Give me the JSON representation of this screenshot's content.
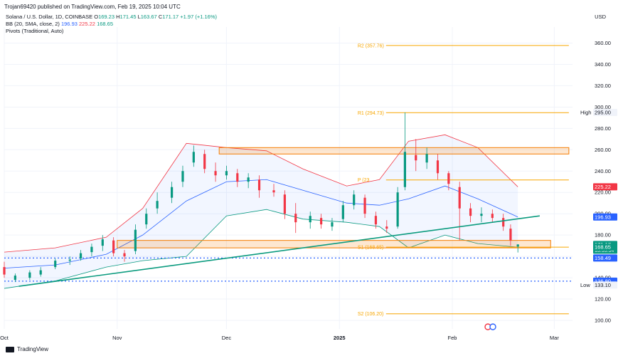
{
  "header": {
    "published_line": "Trojan69420 published on TradingView.com, Feb 19, 2025 10:04 UTC",
    "currency": "USD"
  },
  "legend": {
    "symbol": "Solana / U.S. Dollar, 1D, COINBASE",
    "open_label": "O",
    "open": "169.23",
    "high_label": "H",
    "high": "171.45",
    "low_label": "L",
    "low": "163.67",
    "close_label": "C",
    "close": "171.17",
    "change": "+1.97 (+1.16%)",
    "bb_label": "BB (20, SMA, close, 2)",
    "bb_basis": "196.93",
    "bb_upper": "225.22",
    "bb_lower": "168.65",
    "pivots_label": "Pivots (Traditional, Auto)"
  },
  "footer": {
    "brand": "TradingView"
  },
  "colors": {
    "up": "#089981",
    "down": "#f23645",
    "bb_basis": "#2962ff",
    "bb_upper": "#f23645",
    "bb_lower": "#089981",
    "pivot": "#f7a600",
    "zone": "#f57c00",
    "trendline": "#0b9b7f"
  },
  "chart_data": {
    "type": "candlestick",
    "y_axis": {
      "min": 92,
      "max": 375,
      "scale": "linear",
      "ticks": [
        100,
        120,
        140,
        160,
        180,
        200,
        220,
        240,
        260,
        280,
        300,
        320,
        340,
        360
      ]
    },
    "x_axis": {
      "start": "2024-10-01",
      "end": "2025-03-06",
      "labels": [
        {
          "date": "2024-10-01",
          "text": "Oct"
        },
        {
          "date": "2024-11-01",
          "text": "Nov"
        },
        {
          "date": "2024-12-01",
          "text": "Dec"
        },
        {
          "date": "2025-01-01",
          "text": "2025"
        },
        {
          "date": "2025-02-01",
          "text": "Feb"
        },
        {
          "date": "2025-03-01",
          "text": "Mar"
        }
      ]
    },
    "grid": true,
    "pivots": [
      {
        "label": "R2 (357.76)",
        "value": 357.76,
        "from": "2025-01-06",
        "to": "2025-03-05"
      },
      {
        "label": "R1 (294.73)",
        "value": 294.73,
        "from": "2025-01-06",
        "to": "2025-03-05"
      },
      {
        "label": "P (23",
        "value": 231.7,
        "from": "2025-01-06",
        "to": "2025-03-05"
      },
      {
        "label": "S1 (168.65)",
        "value": 168.65,
        "from": "2025-01-06",
        "to": "2025-03-05"
      },
      {
        "label": "S2 (106.20)",
        "value": 106.2,
        "from": "2025-01-06",
        "to": "2025-03-05"
      }
    ],
    "zones": [
      {
        "from": "2024-11-29",
        "to": "2025-03-05",
        "low": 256,
        "high": 262
      },
      {
        "from": "2024-11-01",
        "to": "2025-02-28",
        "low": 168,
        "high": 175
      }
    ],
    "trendline": {
      "from": {
        "date": "2024-10-05",
        "value": 132
      },
      "to": {
        "date": "2025-02-25",
        "value": 198
      }
    },
    "levels": [
      {
        "value": 158.49,
        "label": "158.49",
        "style": "dotted",
        "color": "#2962ff"
      },
      {
        "value": 136.8,
        "label": "136.80",
        "style": "dotted",
        "color": "#2962ff"
      }
    ],
    "price_tags": [
      {
        "value": 295.0,
        "text": "295.00",
        "caption": "High",
        "bg": "#f0f3fa",
        "fg": "#131722"
      },
      {
        "value": 225.22,
        "text": "225.22",
        "bg": "#f23645",
        "fg": "#ffffff"
      },
      {
        "value": 196.93,
        "text": "196.93",
        "bg": "#2962ff",
        "fg": "#ffffff"
      },
      {
        "value": 171.17,
        "text": "171.17",
        "sub": "13:55:54",
        "bg": "#089981",
        "fg": "#ffffff"
      },
      {
        "value": 168.65,
        "text": "168.65",
        "bg": "#089981",
        "fg": "#ffffff"
      },
      {
        "value": 158.49,
        "text": "158.49",
        "bg": "#2962ff",
        "fg": "#ffffff"
      },
      {
        "value": 136.8,
        "text": "136.80",
        "bg": "#2962ff",
        "fg": "#ffffff"
      },
      {
        "value": 133.1,
        "text": "133.10",
        "caption": "Low",
        "bg": "#f0f3fa",
        "fg": "#131722"
      }
    ],
    "ohlc": [
      [
        "2024-10-01",
        150,
        155,
        140,
        143
      ],
      [
        "2024-10-04",
        138,
        144,
        136,
        142
      ],
      [
        "2024-10-08",
        140,
        147,
        138,
        145
      ],
      [
        "2024-10-11",
        143,
        150,
        141,
        147
      ],
      [
        "2024-10-15",
        150,
        158,
        148,
        156
      ],
      [
        "2024-10-19",
        156,
        160,
        152,
        157
      ],
      [
        "2024-10-22",
        158,
        166,
        156,
        163
      ],
      [
        "2024-10-25",
        164,
        172,
        160,
        169
      ],
      [
        "2024-10-28",
        170,
        180,
        165,
        176
      ],
      [
        "2024-10-31",
        175,
        178,
        160,
        163
      ],
      [
        "2024-11-03",
        163,
        166,
        155,
        160
      ],
      [
        "2024-11-06",
        165,
        190,
        162,
        185
      ],
      [
        "2024-11-09",
        190,
        205,
        186,
        200
      ],
      [
        "2024-11-12",
        205,
        220,
        200,
        212
      ],
      [
        "2024-11-16",
        215,
        230,
        210,
        225
      ],
      [
        "2024-11-19",
        230,
        245,
        225,
        240
      ],
      [
        "2024-11-22",
        248,
        264,
        244,
        258
      ],
      [
        "2024-11-25",
        256,
        260,
        238,
        242
      ],
      [
        "2024-11-28",
        240,
        248,
        230,
        236
      ],
      [
        "2024-12-01",
        236,
        245,
        232,
        240
      ],
      [
        "2024-12-04",
        238,
        242,
        225,
        230
      ],
      [
        "2024-12-07",
        230,
        238,
        224,
        234
      ],
      [
        "2024-12-10",
        232,
        236,
        215,
        222
      ],
      [
        "2024-12-14",
        222,
        228,
        216,
        220
      ],
      [
        "2024-12-17",
        218,
        222,
        195,
        200
      ],
      [
        "2024-12-20",
        200,
        210,
        182,
        192
      ],
      [
        "2024-12-24",
        192,
        202,
        186,
        198
      ],
      [
        "2024-12-27",
        196,
        200,
        186,
        190
      ],
      [
        "2024-12-30",
        188,
        196,
        184,
        192
      ],
      [
        "2025-01-02",
        195,
        212,
        192,
        208
      ],
      [
        "2025-01-05",
        208,
        222,
        204,
        218
      ],
      [
        "2025-01-08",
        215,
        218,
        196,
        200
      ],
      [
        "2025-01-11",
        198,
        202,
        186,
        190
      ],
      [
        "2025-01-14",
        188,
        194,
        182,
        186
      ],
      [
        "2025-01-17",
        188,
        225,
        186,
        220
      ],
      [
        "2025-01-19",
        225,
        295,
        222,
        258
      ],
      [
        "2025-01-22",
        255,
        270,
        240,
        250
      ],
      [
        "2025-01-25",
        248,
        262,
        242,
        256
      ],
      [
        "2025-01-28",
        250,
        256,
        232,
        238
      ],
      [
        "2025-01-31",
        238,
        240,
        222,
        228
      ],
      [
        "2025-02-03",
        225,
        230,
        175,
        205
      ],
      [
        "2025-02-06",
        205,
        210,
        192,
        198
      ],
      [
        "2025-02-09",
        198,
        206,
        192,
        200
      ],
      [
        "2025-02-12",
        200,
        204,
        192,
        196
      ],
      [
        "2025-02-15",
        196,
        200,
        184,
        188
      ],
      [
        "2025-02-17",
        186,
        190,
        170,
        175
      ],
      [
        "2025-02-19",
        169.23,
        171.45,
        163.67,
        171.17
      ]
    ],
    "bollinger": {
      "dates": [
        "2024-10-01",
        "2024-10-15",
        "2024-10-29",
        "2024-11-08",
        "2024-11-20",
        "2024-12-01",
        "2024-12-12",
        "2024-12-22",
        "2025-01-03",
        "2025-01-12",
        "2025-01-20",
        "2025-01-30",
        "2025-02-08",
        "2025-02-19"
      ],
      "upper": [
        164,
        168,
        178,
        205,
        266,
        262,
        259,
        242,
        226,
        232,
        268,
        274,
        262,
        225.22
      ],
      "basis": [
        149,
        152,
        162,
        180,
        212,
        230,
        232,
        222,
        210,
        208,
        214,
        226,
        214,
        196.93
      ],
      "lower": [
        130,
        137,
        150,
        156,
        160,
        198,
        204,
        195,
        192,
        188,
        168,
        180,
        172,
        168.65
      ]
    }
  }
}
